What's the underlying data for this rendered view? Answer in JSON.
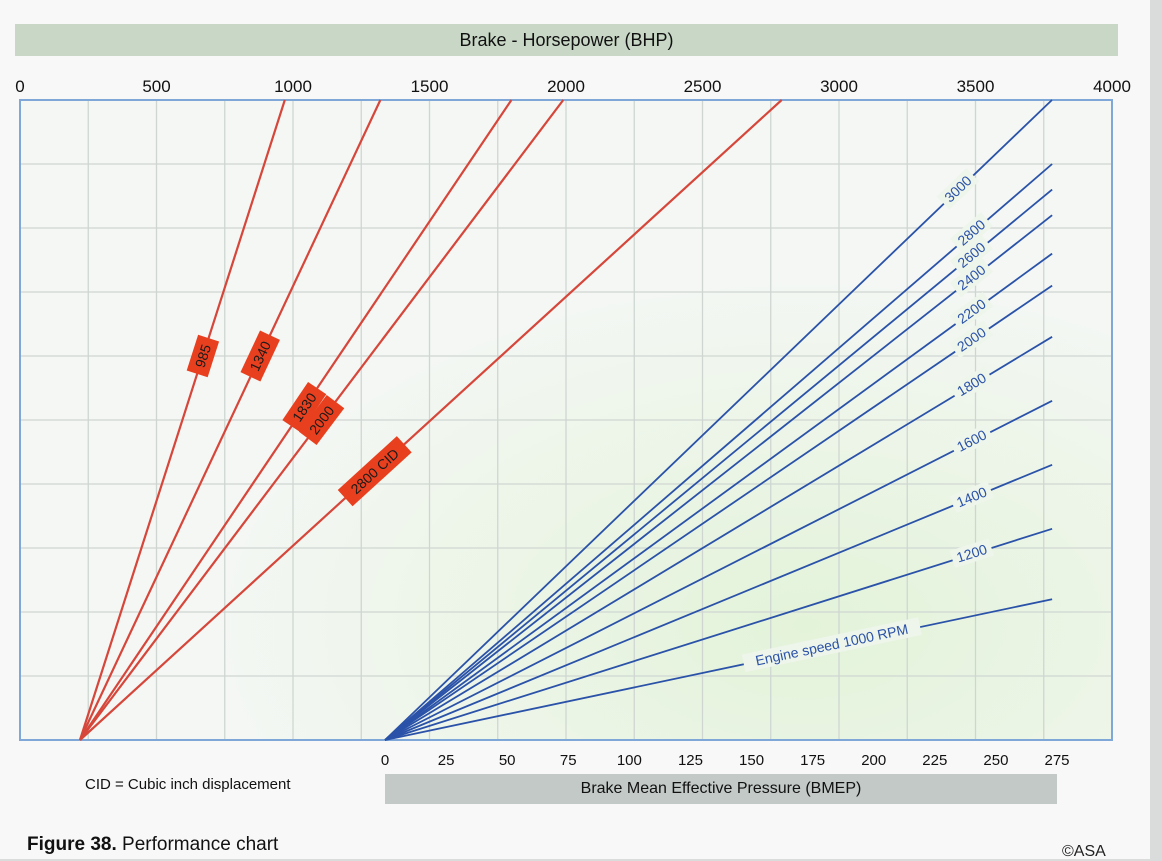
{
  "chart_data": {
    "type": "line",
    "x_top_axis": {
      "label": "Brake - Horsepower (BHP)",
      "ticks": [
        0,
        500,
        1000,
        1500,
        2000,
        2500,
        3000,
        3500,
        4000
      ],
      "range": [
        0,
        4000
      ]
    },
    "x_bottom_axis": {
      "label": "Brake Mean Effective Pressure (BMEP)",
      "ticks": [
        0,
        25,
        50,
        75,
        100,
        125,
        150,
        175,
        200,
        225,
        250,
        275
      ],
      "range": [
        0,
        275
      ]
    },
    "grid": true,
    "displacement_lines": [
      {
        "name": "985",
        "bhp_at_top": 970
      },
      {
        "name": "1340",
        "bhp_at_top": 1320
      },
      {
        "name": "1830",
        "bhp_at_top": 1800
      },
      {
        "name": "2000",
        "bhp_at_top": 1990
      },
      {
        "name": "2800 CID",
        "bhp_at_top": 2790
      }
    ],
    "rpm_lines": [
      {
        "name": "3000",
        "bmep_at_top": 271
      },
      {
        "name": "2800",
        "bmep_at_top": 273
      },
      {
        "name": "2600",
        "bmep_at_top": 273
      },
      {
        "name": "2400",
        "bmep_at_top": 273
      },
      {
        "name": "2200",
        "bmep_at_top": 273
      },
      {
        "name": "2000",
        "bmep_at_top": 273
      },
      {
        "name": "1800",
        "bmep_at_top": 273
      },
      {
        "name": "1600",
        "bmep_at_top": 273
      },
      {
        "name": "1400",
        "bmep_at_top": 273
      },
      {
        "name": "1200",
        "bmep_at_top": 273
      },
      {
        "name": "Engine speed 1000 RPM",
        "bmep_at_top": 273
      }
    ],
    "rpm_right_end_fraction": [
      0.98,
      0.9,
      0.86,
      0.82,
      0.76,
      0.71,
      0.63,
      0.53,
      0.43,
      0.33,
      0.22
    ],
    "note": "CID = Cubic inch displacement",
    "colors": {
      "displacement": "#d6463a",
      "rpm": "#2a52a8",
      "frame": "#7fa8d8",
      "grid": "#cfd6d2",
      "label_box": "#e8401f"
    }
  },
  "caption_label": "Figure 38.",
  "caption_text": " Performance chart",
  "copyright": "©ASA"
}
